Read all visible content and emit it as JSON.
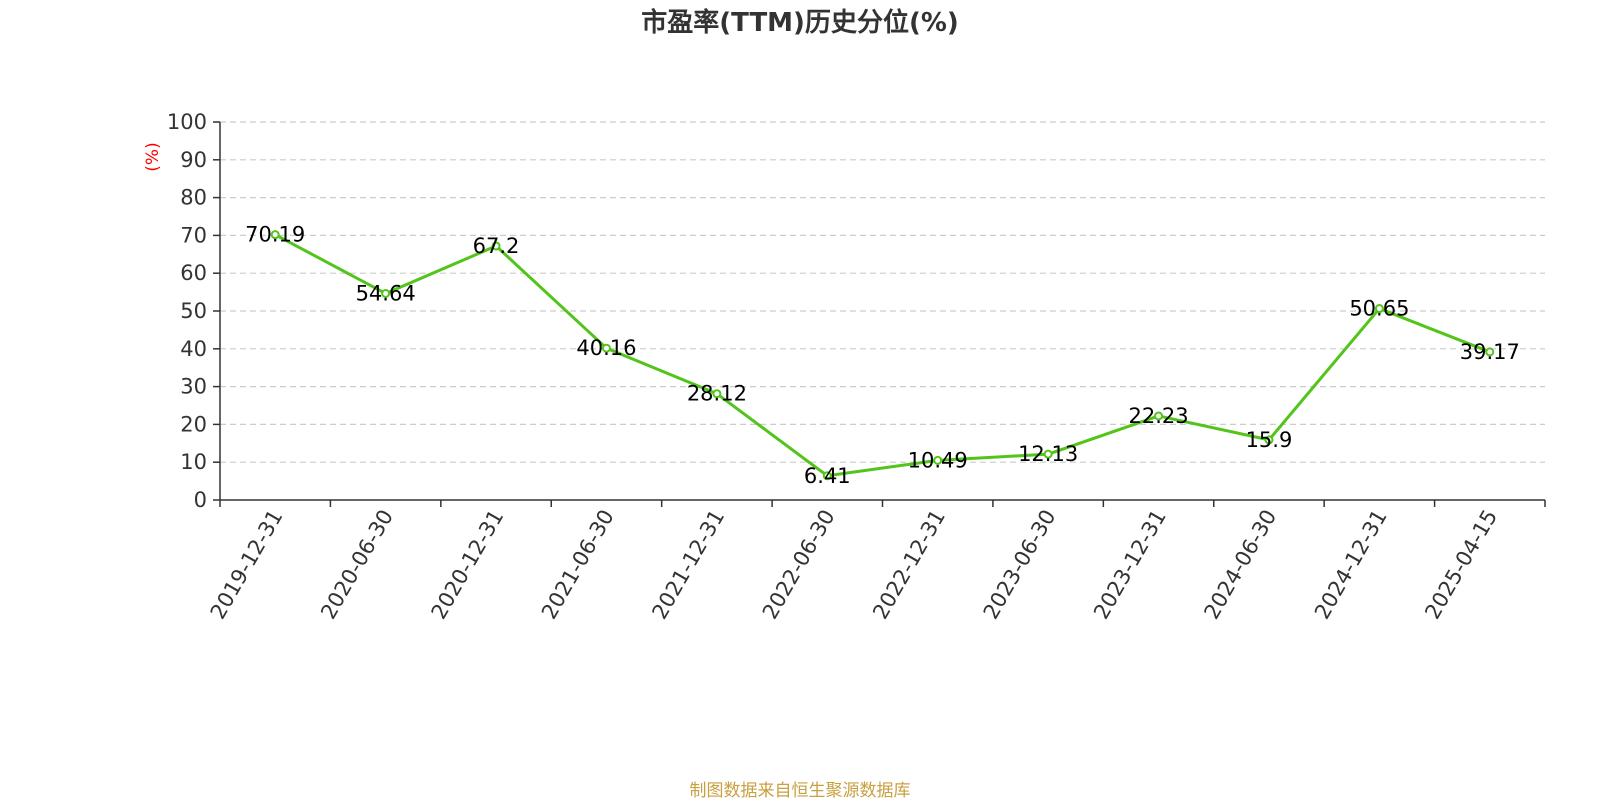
{
  "chart_data": {
    "type": "line",
    "title": "市盈率(TTM)历史分位(%)",
    "ylabel": "(%)",
    "xlabel": "",
    "categories": [
      "2019-12-31",
      "2020-06-30",
      "2020-12-31",
      "2021-06-30",
      "2021-12-31",
      "2022-06-30",
      "2022-12-31",
      "2023-06-30",
      "2023-12-31",
      "2024-06-30",
      "2024-12-31",
      "2025-04-15"
    ],
    "values": [
      70.19,
      54.64,
      67.2,
      40.16,
      28.12,
      6.41,
      10.49,
      12.13,
      22.23,
      15.9,
      50.65,
      39.17
    ],
    "value_labels": [
      "70.19",
      "54.64",
      "67.2",
      "40.16",
      "28.12",
      "6.41",
      "10.49",
      "12.13",
      "22.23",
      "15.9",
      "50.65",
      "39.17"
    ],
    "ylim": [
      0,
      100
    ],
    "yticks": [
      "0",
      "10",
      "20",
      "30",
      "40",
      "50",
      "60",
      "70",
      "80",
      "90",
      "100"
    ],
    "grid": true,
    "legend": "none",
    "line_color": "#52c41a",
    "ylabel_color": "#ff0000"
  },
  "source_note": {
    "text": "制图数据来自恒生聚源数据库",
    "color": "#c8a040"
  }
}
